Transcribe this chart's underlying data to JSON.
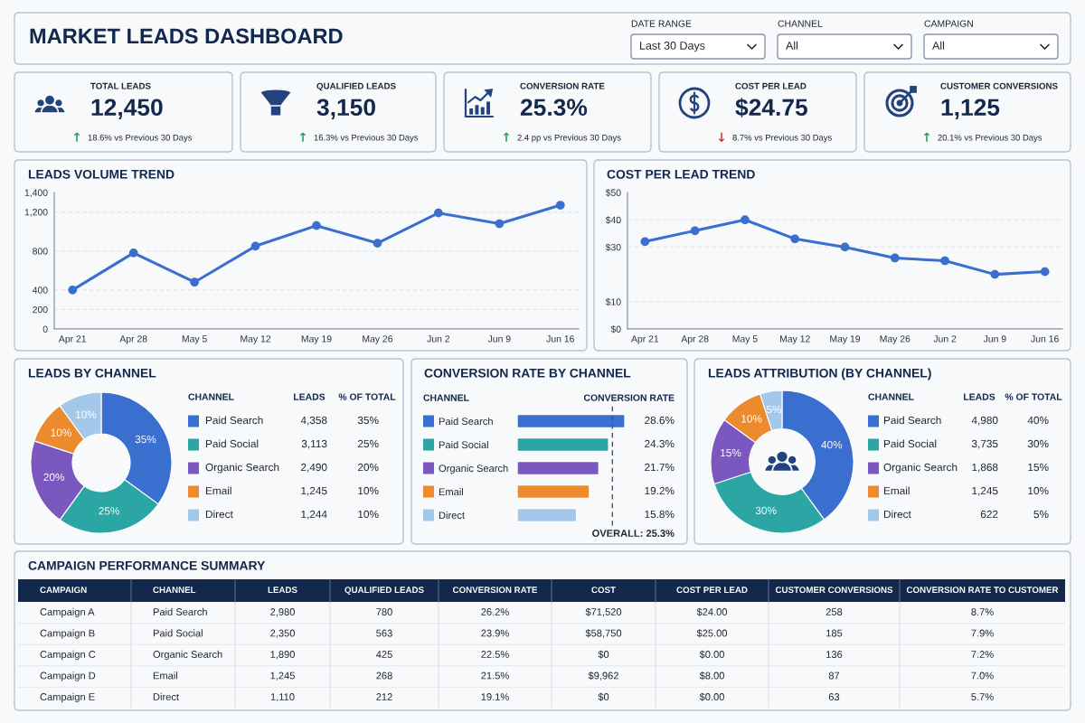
{
  "chart_data": [
    {
      "type": "other",
      "title": "MARKET LEADS DASHBOARD",
      "annotations": [
        "DATE RANGE",
        "Last 30 Days",
        "CHANNEL",
        "All",
        "CAMPAIGN",
        "All"
      ]
    },
    {
      "type": "other",
      "title": "TOTAL LEADS",
      "annotations": [
        "12,450",
        "↑",
        "18.6% vs Previous 30 Days"
      ],
      "color": "#2e9b5c"
    },
    {
      "type": "other",
      "title": "QUALIFIED LEADS",
      "annotations": [
        "3,150",
        "↑",
        "16.3% vs Previous 30 Days"
      ],
      "color": "#2e9b5c"
    },
    {
      "type": "other",
      "title": "CONVERSION RATE",
      "annotations": [
        "25.3%",
        "↑",
        "2.4 pp vs Previous 30 Days"
      ],
      "color": "#2e9b5c"
    },
    {
      "type": "other",
      "title": "COST PER LEAD",
      "annotations": [
        "$24.75",
        "↓",
        "8.7% vs Previous 30 Days"
      ],
      "color": "#d63c3c"
    },
    {
      "type": "other",
      "title": "CUSTOMER CONVERSIONS",
      "annotations": [
        "1,125",
        "↑",
        "20.1% vs Previous 30 Days"
      ],
      "color": "#2e9b5c"
    },
    {
      "type": "line",
      "title": "LEADS VOLUME TREND",
      "categories": [
        "Apr 21",
        "Apr 28",
        "May 5",
        "May 12",
        "May 19",
        "May 26",
        "Jun 2",
        "Jun 9",
        "Jun 16"
      ],
      "values": [
        400,
        780,
        480,
        850,
        1060,
        880,
        1190,
        1080,
        1270
      ],
      "color": "#3a6fcf",
      "ylim": [
        0,
        1400
      ],
      "yticks": [
        0,
        200,
        400,
        800,
        {
          "value": 1200,
          "label": "1,200"
        },
        {
          "value": 1400,
          "label": "1,400"
        }
      ],
      "grid": "y",
      "marker": "circle"
    },
    {
      "type": "line",
      "title": "COST PER LEAD TREND",
      "categories": [
        "Apr 21",
        "Apr 28",
        "May 5",
        "May 12",
        "May 19",
        "May 26",
        "Jun 2",
        "Jun 9",
        "Jun 16"
      ],
      "values": [
        32,
        36,
        40,
        33,
        30,
        26,
        25,
        20,
        21
      ],
      "color": "#3a6fcf",
      "ylim": [
        0,
        50
      ],
      "yticks": [
        {
          "value": 0,
          "label": "$0"
        },
        {
          "value": 10,
          "label": "$10"
        },
        {
          "value": 30,
          "label": "$30"
        },
        {
          "value": 40,
          "label": "$40"
        },
        {
          "value": 50,
          "label": "$50"
        }
      ],
      "grid": "y",
      "marker": "circle"
    },
    {
      "type": "donut",
      "title": "LEADS BY CHANNEL",
      "categories": [
        "Paid Search",
        "Paid Social",
        "Organic Search",
        "Email",
        "Direct"
      ],
      "values": [
        35,
        25,
        20,
        10,
        10
      ],
      "colors": [
        "#3a6fd0",
        "#2ca6a4",
        "#7b58bf",
        "#ec8a2e",
        "#a4c8e9"
      ],
      "value_labels": [
        "35%",
        "25%",
        "20%",
        "10%",
        "10%"
      ],
      "legend": "right",
      "legend_title": "CHANNEL",
      "annotations": [
        "LEADS",
        "% OF TOTAL",
        "4,358",
        "3,113",
        "2,490",
        "1,245",
        "1,244"
      ]
    },
    {
      "type": "bar",
      "orientation": "horizontal",
      "title": "CONVERSION RATE BY CHANNEL",
      "categories": [
        "Paid Search",
        "Paid Social",
        "Organic Search",
        "Email",
        "Direct"
      ],
      "values": [
        28.6,
        24.3,
        21.7,
        19.2,
        15.8
      ],
      "colors": [
        "#3a6fd0",
        "#2ca6a4",
        "#7b58bf",
        "#ec8a2e",
        "#a4c8e9"
      ],
      "value_labels": [
        "28.6%",
        "24.3%",
        "21.7%",
        "19.2%",
        "15.8%"
      ],
      "tick_labels": "y",
      "ylabel": "CHANNEL",
      "xlabel": "CONVERSION RATE",
      "ref_lines": [
        {
          "axis": "x",
          "value": 25.3,
          "label": "OVERALL: 25.3%",
          "color": "#4a5263",
          "line_style": "dashed"
        }
      ]
    },
    {
      "type": "donut",
      "title": "LEADS ATTRIBUTION (BY CHANNEL)",
      "categories": [
        "Paid Search",
        "Paid Social",
        "Organic Search",
        "Email",
        "Direct"
      ],
      "values": [
        40,
        30,
        15,
        10,
        5
      ],
      "colors": [
        "#3a6fd0",
        "#2ca6a4",
        "#7b58bf",
        "#ec8a2e",
        "#a4c8e9"
      ],
      "value_labels": [
        "40%",
        "30%",
        "15%",
        "10%",
        "5%"
      ],
      "legend": "right",
      "legend_title": "CHANNEL",
      "annotations": [
        "LEADS",
        "% OF TOTAL",
        "4,980",
        "3,735",
        "1,868",
        "1,245",
        "622"
      ]
    },
    {
      "type": "other",
      "title": "CAMPAIGN PERFORMANCE SUMMARY",
      "categories": [
        "CAMPAIGN",
        "CHANNEL",
        "LEADS",
        "QUALIFIED LEADS",
        "CONVERSION RATE",
        "COST",
        "COST PER LEAD",
        "CUSTOMER CONVERSIONS",
        "CONVERSION RATE TO CUSTOMER"
      ],
      "annotations": [
        "Campaign A",
        "Paid Search",
        "2,980",
        "780",
        "26.2%",
        "$71,520",
        "$24.00",
        "258",
        "8.7%",
        "Campaign B",
        "Paid Social",
        "2,350",
        "563",
        "23.9%",
        "$58,750",
        "$25.00",
        "185",
        "7.9%",
        "Campaign C",
        "Organic Search",
        "1,890",
        "425",
        "22.5%",
        "$0",
        "$0.00",
        "136",
        "7.2%",
        "Campaign D",
        "Email",
        "1,245",
        "268",
        "21.5%",
        "$9,962",
        "$8.00",
        "87",
        "7.0%",
        "Campaign E",
        "Direct",
        "1,110",
        "212",
        "19.1%",
        "$0",
        "$0.00",
        "63",
        "5.7%"
      ]
    }
  ]
}
